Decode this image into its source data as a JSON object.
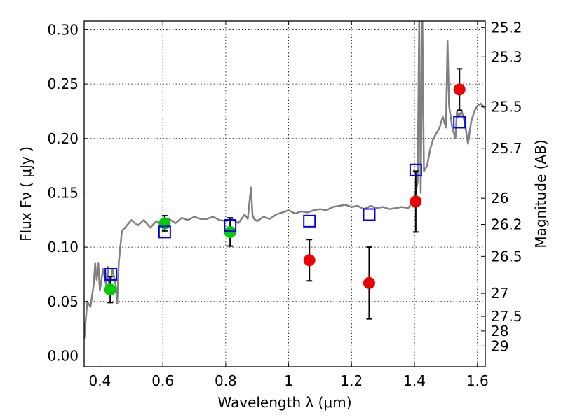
{
  "chart_data": {
    "type": "scatter",
    "xlabel": "Wavelength  λ (μm)",
    "ylabel": "Flux  Fν  ( μJy )",
    "y2label": "Magnitude (AB)",
    "xlim": [
      0.35,
      1.625
    ],
    "ylim": [
      -0.01,
      0.308
    ],
    "x_ticks": [
      0.4,
      0.6,
      0.8,
      1.0,
      1.2,
      1.4,
      1.6
    ],
    "x_tick_labels": [
      "0.4",
      "0.6",
      "0.8",
      "1",
      "1.2",
      "1.4",
      "1.6"
    ],
    "y_ticks": [
      0.0,
      0.05,
      0.1,
      0.15,
      0.2,
      0.25,
      0.3
    ],
    "y_tick_labels": [
      "0.00",
      "0.05",
      "0.10",
      "0.15",
      "0.20",
      "0.25",
      "0.30"
    ],
    "y2_ticks": [
      {
        "label": "25.2",
        "flux": 0.302
      },
      {
        "label": "25.3",
        "flux": 0.275
      },
      {
        "label": "25.5",
        "flux": 0.229
      },
      {
        "label": "25.7",
        "flux": 0.191
      },
      {
        "label": "26",
        "flux": 0.145
      },
      {
        "label": "26.2",
        "flux": 0.121
      },
      {
        "label": "26.5",
        "flux": 0.0915
      },
      {
        "label": "27",
        "flux": 0.0575
      },
      {
        "label": "27.5",
        "flux": 0.0363
      },
      {
        "label": "28",
        "flux": 0.0229
      },
      {
        "label": "29",
        "flux": 0.0091
      }
    ],
    "grid": true,
    "series": [
      {
        "kind": "line",
        "color": "#808080",
        "x": [
          0.35,
          0.36,
          0.37,
          0.38,
          0.385,
          0.39,
          0.395,
          0.4,
          0.41,
          0.42,
          0.425,
          0.43,
          0.44,
          0.45,
          0.455,
          0.46,
          0.47,
          0.48,
          0.5,
          0.52,
          0.54,
          0.56,
          0.58,
          0.6,
          0.62,
          0.64,
          0.66,
          0.68,
          0.7,
          0.72,
          0.74,
          0.76,
          0.78,
          0.8,
          0.82,
          0.84,
          0.86,
          0.87,
          0.88,
          0.885,
          0.89,
          0.9,
          0.92,
          0.94,
          0.96,
          0.98,
          1.0,
          1.02,
          1.04,
          1.06,
          1.08,
          1.1,
          1.12,
          1.14,
          1.16,
          1.18,
          1.2,
          1.22,
          1.24,
          1.26,
          1.28,
          1.3,
          1.32,
          1.34,
          1.36,
          1.38,
          1.39,
          1.4,
          1.41,
          1.415,
          1.42,
          1.425,
          1.43,
          1.44,
          1.45,
          1.46,
          1.47,
          1.48,
          1.49,
          1.5,
          1.505,
          1.51,
          1.52,
          1.53,
          1.535,
          1.54,
          1.55,
          1.56,
          1.57,
          1.58,
          1.59,
          1.6,
          1.61,
          1.625
        ],
        "y": [
          0.015,
          0.05,
          0.045,
          0.065,
          0.085,
          0.07,
          0.085,
          0.06,
          0.08,
          0.065,
          0.082,
          0.06,
          0.08,
          0.065,
          0.048,
          0.085,
          0.115,
          0.118,
          0.125,
          0.12,
          0.125,
          0.118,
          0.124,
          0.12,
          0.126,
          0.122,
          0.127,
          0.125,
          0.128,
          0.126,
          0.126,
          0.128,
          0.125,
          0.124,
          0.126,
          0.122,
          0.13,
          0.126,
          0.155,
          0.13,
          0.126,
          0.124,
          0.128,
          0.126,
          0.13,
          0.132,
          0.134,
          0.131,
          0.133,
          0.132,
          0.134,
          0.135,
          0.134,
          0.137,
          0.138,
          0.139,
          0.137,
          0.138,
          0.135,
          0.138,
          0.136,
          0.137,
          0.135,
          0.136,
          0.137,
          0.136,
          0.14,
          0.145,
          0.16,
          0.31,
          0.15,
          0.31,
          0.17,
          0.175,
          0.19,
          0.2,
          0.205,
          0.21,
          0.22,
          0.21,
          0.29,
          0.23,
          0.21,
          0.2,
          0.225,
          0.22,
          0.225,
          0.215,
          0.195,
          0.215,
          0.225,
          0.23,
          0.232,
          0.228
        ]
      },
      {
        "kind": "markers",
        "marker": "circle",
        "color": "#00cc00",
        "points": [
          {
            "x": 0.433,
            "y": 0.061,
            "err": 0.012
          },
          {
            "x": 0.606,
            "y": 0.122,
            "err": 0.007
          },
          {
            "x": 0.814,
            "y": 0.114,
            "err": 0.013
          }
        ]
      },
      {
        "kind": "markers",
        "marker": "circle",
        "color": "#ee0000",
        "points": [
          {
            "x": 1.066,
            "y": 0.088,
            "err": 0.019
          },
          {
            "x": 1.256,
            "y": 0.067,
            "err": 0.033
          },
          {
            "x": 1.404,
            "y": 0.142,
            "err": 0.028
          },
          {
            "x": 1.543,
            "y": 0.245,
            "err": 0.019
          }
        ]
      },
      {
        "kind": "markers",
        "marker": "open-square",
        "color": "#0000ee",
        "points": [
          {
            "x": 0.435,
            "y": 0.075
          },
          {
            "x": 0.606,
            "y": 0.114
          },
          {
            "x": 0.814,
            "y": 0.12
          },
          {
            "x": 1.066,
            "y": 0.124
          },
          {
            "x": 1.256,
            "y": 0.13
          },
          {
            "x": 1.404,
            "y": 0.171
          },
          {
            "x": 1.543,
            "y": 0.215
          }
        ]
      }
    ]
  }
}
